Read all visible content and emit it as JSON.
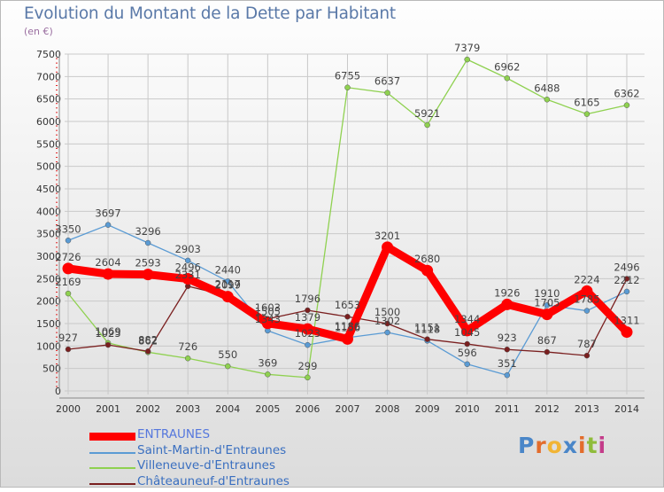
{
  "title": "Evolution du Montant de la Dette par Habitant",
  "subtitle": "(en €)",
  "logo": {
    "text": "Proxiti",
    "colors": [
      "#4a86c8",
      "#e36c2c",
      "#f1b434",
      "#4a86c8",
      "#e36c2c",
      "#8fbc3b",
      "#c43c8a"
    ]
  },
  "chart_data": {
    "type": "line",
    "title": "Evolution du Montant de la Dette par Habitant",
    "ylabel": "(en €)",
    "xlabel": "",
    "ylim": [
      0,
      7500
    ],
    "yticks": [
      0,
      500,
      1000,
      1500,
      2000,
      2500,
      3000,
      3500,
      4000,
      4500,
      5000,
      5500,
      6000,
      6500,
      7000,
      7500
    ],
    "grid": true,
    "legend": "bottom-left",
    "x": [
      "2000",
      "2001",
      "2002",
      "2003",
      "2004",
      "2005",
      "2006",
      "2007",
      "2008",
      "2009",
      "2010",
      "2011",
      "2012",
      "2013",
      "2014"
    ],
    "series": [
      {
        "name": "ENTRAUNES",
        "color": "#ff0000",
        "values": [
          2726,
          2604,
          2593,
          2496,
          2099,
          1505,
          1379,
          1156,
          3201,
          2680,
          1344,
          1926,
          1705,
          2224,
          1311
        ]
      },
      {
        "name": "Saint-Martin-d'Entraunes",
        "color": "#5a9bd4",
        "values": [
          3350,
          3697,
          3296,
          2903,
          2440,
          1343,
          1023,
          1186,
          1302,
          1118,
          596,
          351,
          1910,
          1785,
          2212
        ]
      },
      {
        "name": "Villeneuve-d'Entraunes",
        "color": "#8fd150",
        "values": [
          2169,
          1069,
          862,
          726,
          550,
          369,
          299,
          6755,
          6637,
          5921,
          7379,
          6962,
          6488,
          6165,
          6362
        ]
      },
      {
        "name": "Châteauneuf-d'Entraunes",
        "color": "#7a1f1f",
        "values": [
          927,
          1025,
          882,
          2331,
          2117,
          1603,
          1796,
          1653,
          1500,
          1151,
          1045,
          923,
          867,
          787,
          2496
        ]
      }
    ]
  }
}
